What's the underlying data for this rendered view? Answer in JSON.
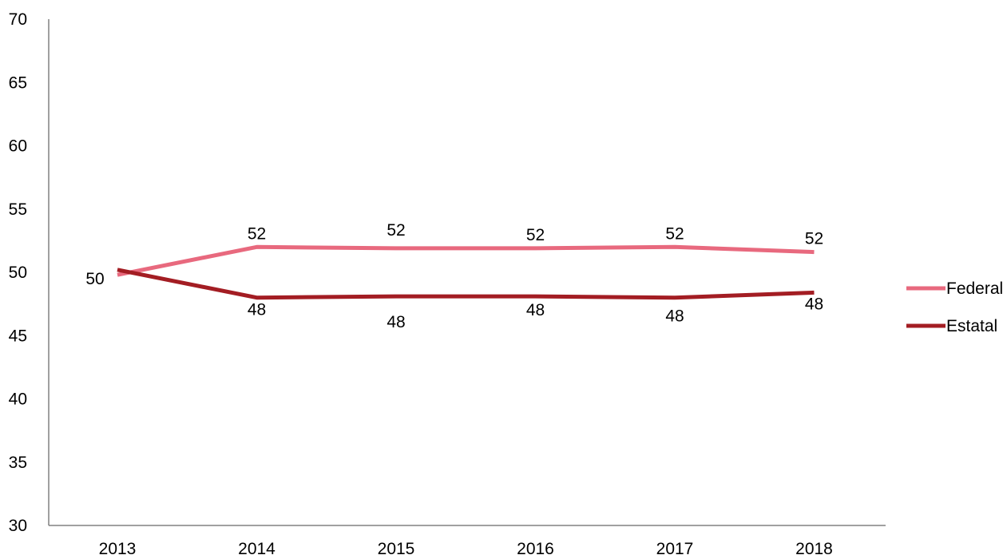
{
  "chart_data": {
    "type": "line",
    "title": "",
    "xlabel": "",
    "ylabel": "",
    "x": [
      "2013",
      "2014",
      "2015",
      "2016",
      "2017",
      "2018"
    ],
    "ylim": [
      30,
      70
    ],
    "yticks": [
      30,
      35,
      40,
      45,
      50,
      55,
      60,
      65,
      70
    ],
    "grid": false,
    "legend_position": "right",
    "series": [
      {
        "name": "Federal",
        "color": "#E8697E",
        "values": [
          49.8,
          52.0,
          51.9,
          51.9,
          52.0,
          51.6
        ],
        "labels": [
          "50",
          "52",
          "52",
          "52",
          "52",
          "52"
        ]
      },
      {
        "name": "Estatal",
        "color": "#A31D23",
        "values": [
          50.2,
          48.0,
          48.1,
          48.1,
          48.0,
          48.4
        ],
        "labels": [
          "",
          "48",
          "48",
          "48",
          "48",
          "48"
        ]
      }
    ]
  }
}
